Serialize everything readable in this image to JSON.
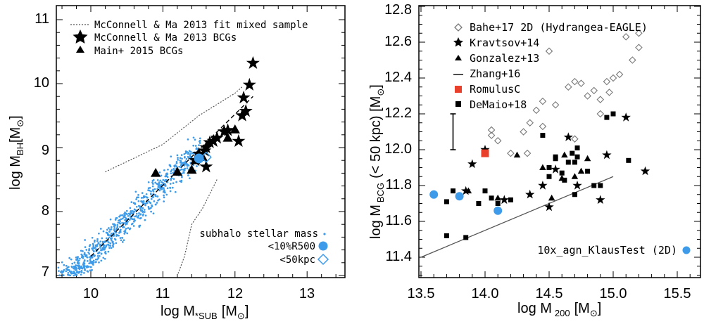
{
  "chart_data": [
    {
      "type": "scatter",
      "xlim": [
        9.5,
        13.5
      ],
      "ylim": [
        7.0,
        11.2
      ],
      "x_ticks": [
        "10",
        "11",
        "12",
        "13"
      ],
      "y_ticks": [
        "7",
        "8",
        "9",
        "10",
        "11"
      ],
      "xlabel": "log M",
      "xlabel_sub": "*SUB",
      "xlabel_unit": "[M",
      "xlabel_unit_sun": "⊙",
      "xlabel_unit_end": "]",
      "ylabel": "log M",
      "ylabel_sub": "BH",
      "ylabel_unit": "[M",
      "ylabel_unit_sun": "⊙",
      "ylabel_unit_end": "]",
      "legend_placement": "top-left",
      "legend": {
        "mixed_fit": "McConnell & Ma 2013 fit mixed sample",
        "mcconnell_bcgs": "McConnell & Ma 2013 BCGs",
        "main_bcgs": "Main+ 2015 BCGs",
        "subhalo": "subhalo stellar mass",
        "r500": "<10%R500",
        "kpc50": "<50kpc"
      },
      "colors": {
        "simulation": "#3d9be9",
        "black": "#000000"
      },
      "mixed_fit_envelope_upper": [
        [
          10.2,
          8.62
        ],
        [
          11.0,
          9.05
        ],
        [
          11.5,
          9.5
        ],
        [
          12.0,
          9.85
        ],
        [
          12.1,
          9.95
        ]
      ],
      "mixed_fit_envelope_lower": [
        [
          11.75,
          8.5
        ],
        [
          11.55,
          8.05
        ],
        [
          11.4,
          7.8
        ],
        [
          11.3,
          7.3
        ],
        [
          11.2,
          7.0
        ]
      ],
      "fit_line": [
        [
          10.0,
          7.3
        ],
        [
          12.25,
          9.8
        ]
      ],
      "mcconnell_bcgs": [
        [
          12.25,
          10.32
        ],
        [
          12.2,
          9.98
        ],
        [
          12.12,
          9.78
        ],
        [
          12.15,
          9.57
        ],
        [
          12.1,
          9.5
        ],
        [
          12.05,
          9.1
        ],
        [
          11.9,
          9.27
        ],
        [
          11.85,
          9.25
        ],
        [
          11.75,
          9.15
        ],
        [
          11.65,
          9.08
        ],
        [
          11.7,
          9.1
        ],
        [
          11.6,
          9.0
        ],
        [
          11.58,
          8.95
        ],
        [
          11.6,
          8.7
        ],
        [
          11.5,
          8.9
        ],
        [
          11.45,
          8.8
        ]
      ],
      "main_bcgs": [
        [
          10.9,
          8.6
        ],
        [
          11.2,
          8.62
        ],
        [
          11.45,
          8.8
        ],
        [
          11.55,
          8.85
        ],
        [
          11.9,
          9.15
        ],
        [
          12.0,
          9.28
        ],
        [
          11.4,
          8.65
        ]
      ],
      "r500_point": [
        11.5,
        8.83
      ],
      "kpc50_point": [
        11.6,
        8.85
      ],
      "subhalo_seed": 7,
      "subhalo_count": 950
    },
    {
      "type": "scatter",
      "xlim": [
        13.5,
        15.7
      ],
      "ylim": [
        11.3,
        12.82
      ],
      "x_ticks": [
        "13.5",
        "14.0",
        "14.5",
        "15.0",
        "15.5"
      ],
      "y_ticks": [
        "11.4",
        "11.6",
        "11.8",
        "12.0",
        "12.2",
        "12.4",
        "12.6",
        "12.8"
      ],
      "xlabel": "log M",
      "xlabel_sub": "200",
      "xlabel_unit": "[M",
      "xlabel_unit_sun": "⊙",
      "xlabel_unit_end": "]",
      "ylabel": "log M",
      "ylabel_sub": "BCG",
      "ylabel_rest": "(< 50 kpc) [M",
      "ylabel_unit_sun": "⊙",
      "ylabel_unit_end": "]",
      "legend_placement": "top-left",
      "legend": {
        "bahe": "Bahe+17 2D (Hydrangea-EAGLE)",
        "kravtsov": "Kravtsov+14",
        "gonzalez": "Gonzalez+13",
        "zhang": "Zhang+16",
        "romulus": "RomulusC",
        "demaio": "DeMaio+18",
        "agn": "10x_agn_KlausTest (2D)"
      },
      "colors": {
        "romulus": "#e8402a",
        "simulation": "#3d9be9",
        "open_diamond": "#777777"
      },
      "errorbar": {
        "x": 13.75,
        "y_low": 12.0,
        "y_high": 12.2
      },
      "zhang_line": [
        [
          13.5,
          11.4
        ],
        [
          15.0,
          11.85
        ]
      ],
      "bahe": [
        [
          14.05,
          12.11
        ],
        [
          14.05,
          12.08
        ],
        [
          14.1,
          12.05
        ],
        [
          14.3,
          12.1
        ],
        [
          14.2,
          11.98
        ],
        [
          14.35,
          12.15
        ],
        [
          14.4,
          12.22
        ],
        [
          14.45,
          12.27
        ],
        [
          14.55,
          12.25
        ],
        [
          14.65,
          12.35
        ],
        [
          14.7,
          12.38
        ],
        [
          14.75,
          12.37
        ],
        [
          14.8,
          12.3
        ],
        [
          14.85,
          12.33
        ],
        [
          14.9,
          12.28
        ],
        [
          14.95,
          12.38
        ],
        [
          15.0,
          12.4
        ],
        [
          15.05,
          12.42
        ],
        [
          14.97,
          12.32
        ],
        [
          15.1,
          12.63
        ],
        [
          15.15,
          12.5
        ],
        [
          15.2,
          12.57
        ],
        [
          14.5,
          12.55
        ],
        [
          14.7,
          12.06
        ],
        [
          14.9,
          12.2
        ],
        [
          14.33,
          11.98
        ],
        [
          15.2,
          12.65
        ],
        [
          14.45,
          12.13
        ]
      ],
      "kravtsov": [
        [
          13.9,
          11.92
        ],
        [
          14.0,
          12.0
        ],
        [
          13.85,
          11.77
        ],
        [
          14.15,
          11.72
        ],
        [
          14.35,
          11.75
        ],
        [
          14.45,
          11.8
        ],
        [
          14.5,
          11.68
        ],
        [
          14.72,
          11.8
        ],
        [
          14.9,
          11.72
        ],
        [
          14.95,
          11.97
        ],
        [
          15.1,
          12.18
        ],
        [
          15.25,
          11.88
        ],
        [
          14.55,
          11.89
        ],
        [
          14.65,
          12.07
        ]
      ],
      "gonzalez": [
        [
          13.87,
          11.77
        ],
        [
          14.1,
          11.73
        ],
        [
          14.25,
          11.97
        ],
        [
          14.45,
          11.9
        ],
        [
          14.52,
          11.73
        ],
        [
          14.6,
          11.84
        ],
        [
          14.7,
          11.85
        ],
        [
          14.75,
          11.88
        ],
        [
          14.8,
          11.95
        ],
        [
          14.62,
          11.97
        ]
      ],
      "romulus": [
        14.0,
        11.98
      ],
      "demaio": [
        [
          13.7,
          11.71
        ],
        [
          13.7,
          11.52
        ],
        [
          13.75,
          11.77
        ],
        [
          13.85,
          11.51
        ],
        [
          13.95,
          11.7
        ],
        [
          14.0,
          11.77
        ],
        [
          14.05,
          11.73
        ],
        [
          14.1,
          11.7
        ],
        [
          14.2,
          11.72
        ],
        [
          14.45,
          12.08
        ],
        [
          14.5,
          11.9
        ],
        [
          14.5,
          11.85
        ],
        [
          14.55,
          11.95
        ],
        [
          14.6,
          11.87
        ],
        [
          14.62,
          11.83
        ],
        [
          14.65,
          11.93
        ],
        [
          14.68,
          11.98
        ],
        [
          14.7,
          11.93
        ],
        [
          14.72,
          12.01
        ],
        [
          14.72,
          11.96
        ],
        [
          14.8,
          11.88
        ],
        [
          14.85,
          11.8
        ],
        [
          14.9,
          11.8
        ],
        [
          14.95,
          12.18
        ],
        [
          15.0,
          12.2
        ],
        [
          15.12,
          11.94
        ],
        [
          14.55,
          11.96
        ],
        [
          14.7,
          11.75
        ]
      ],
      "agn_points": [
        [
          13.6,
          11.75
        ],
        [
          13.8,
          11.74
        ],
        [
          14.1,
          11.66
        ]
      ]
    }
  ]
}
